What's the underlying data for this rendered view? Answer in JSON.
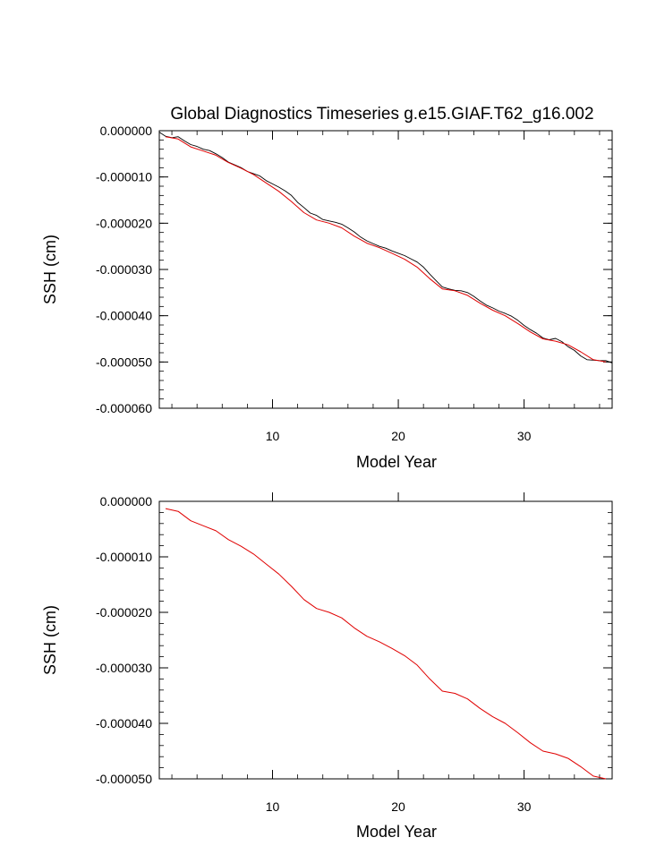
{
  "title": "Global Diagnostics Timeseries g.e15.GIAF.T62_g16.002",
  "colors": {
    "red_series": "#e00000",
    "black_series": "#000000",
    "axis": "#000000",
    "background": "#ffffff"
  },
  "chart_data": [
    {
      "type": "line",
      "title": "Global Diagnostics Timeseries g.e15.GIAF.T62_g16.002",
      "xlabel": "Model Year",
      "ylabel": "SSH (cm)",
      "xlim": [
        1,
        37
      ],
      "ylim": [
        -6e-05,
        0
      ],
      "xticks": [
        10,
        20,
        30
      ],
      "xtick_labels": [
        "10",
        "20",
        "30"
      ],
      "yticks": [
        0,
        -1e-05,
        -2e-05,
        -3e-05,
        -4e-05,
        -5e-05,
        -6e-05
      ],
      "ytick_labels": [
        "0.000000",
        "-0.000010",
        "-0.000020",
        "-0.000030",
        "-0.000040",
        "-0.000050",
        "-0.000060"
      ],
      "grid": false,
      "series": [
        {
          "style": "black-monthly",
          "color": "#000000",
          "x": [
            1.0,
            1.5,
            2.0,
            2.5,
            3.0,
            3.5,
            4.0,
            4.5,
            5.0,
            5.5,
            6.0,
            6.5,
            7.0,
            7.5,
            8.0,
            8.5,
            9.0,
            9.5,
            10.0,
            10.5,
            11.0,
            11.5,
            12.0,
            12.5,
            13.0,
            13.5,
            14.0,
            14.5,
            15.0,
            15.5,
            16.0,
            16.5,
            17.0,
            17.5,
            18.0,
            18.5,
            19.0,
            19.5,
            20.0,
            20.5,
            21.0,
            21.5,
            22.0,
            22.5,
            23.0,
            23.5,
            24.0,
            24.5,
            25.0,
            25.5,
            26.0,
            26.5,
            27.0,
            27.5,
            28.0,
            28.5,
            29.0,
            29.5,
            30.0,
            30.5,
            31.0,
            31.5,
            32.0,
            32.5,
            33.0,
            33.5,
            34.0,
            34.5,
            35.0,
            35.5,
            36.0,
            36.5,
            37.0
          ],
          "y": [
            -3e-07,
            -1.2e-06,
            -1.5e-06,
            -1.3e-06,
            -2.2e-06,
            -3e-06,
            -3.4e-06,
            -4e-06,
            -4.3e-06,
            -5e-06,
            -5.8e-06,
            -6.8e-06,
            -7.4e-06,
            -8e-06,
            -8.8e-06,
            -9.3e-06,
            -9.8e-06,
            -1.08e-05,
            -1.15e-05,
            -1.22e-05,
            -1.3e-05,
            -1.4e-05,
            -1.55e-05,
            -1.66e-05,
            -1.78e-05,
            -1.83e-05,
            -1.92e-05,
            -1.95e-05,
            -1.98e-05,
            -2.02e-05,
            -2.1e-05,
            -2.19e-05,
            -2.3e-05,
            -2.38e-05,
            -2.44e-05,
            -2.5e-05,
            -2.54e-05,
            -2.6e-05,
            -2.65e-05,
            -2.7e-05,
            -2.77e-05,
            -2.84e-05,
            -2.95e-05,
            -3.1e-05,
            -3.24e-05,
            -3.38e-05,
            -3.42e-05,
            -3.45e-05,
            -3.46e-05,
            -3.5e-05,
            -3.58e-05,
            -3.68e-05,
            -3.77e-05,
            -3.83e-05,
            -3.9e-05,
            -3.95e-05,
            -4.01e-05,
            -4.1e-05,
            -4.21e-05,
            -4.3e-05,
            -4.38e-05,
            -4.48e-05,
            -4.52e-05,
            -4.49e-05,
            -4.56e-05,
            -4.67e-05,
            -4.75e-05,
            -4.87e-05,
            -4.95e-05,
            -4.96e-05,
            -4.97e-05,
            -4.97e-05,
            -5.02e-05
          ]
        },
        {
          "style": "red-annual",
          "color": "#e00000",
          "x": [
            1.5,
            2.5,
            3.5,
            4.5,
            5.5,
            6.5,
            7.5,
            8.5,
            9.5,
            10.5,
            11.5,
            12.5,
            13.5,
            14.5,
            15.5,
            16.5,
            17.5,
            18.5,
            19.5,
            20.5,
            21.5,
            22.5,
            23.5,
            24.5,
            25.5,
            26.5,
            27.5,
            28.5,
            29.5,
            30.5,
            31.5,
            32.5,
            33.5,
            34.5,
            35.5,
            36.5
          ],
          "y": [
            -1.3e-06,
            -1.8e-06,
            -3.5e-06,
            -4.4e-06,
            -5.3e-06,
            -6.9e-06,
            -8.1e-06,
            -9.5e-06,
            -1.13e-05,
            -1.31e-05,
            -1.53e-05,
            -1.77e-05,
            -1.93e-05,
            -2e-05,
            -2.1e-05,
            -2.28e-05,
            -2.43e-05,
            -2.53e-05,
            -2.65e-05,
            -2.78e-05,
            -2.95e-05,
            -3.2e-05,
            -3.42e-05,
            -3.46e-05,
            -3.56e-05,
            -3.73e-05,
            -3.88e-05,
            -4e-05,
            -4.17e-05,
            -4.35e-05,
            -4.5e-05,
            -4.55e-05,
            -4.63e-05,
            -4.78e-05,
            -4.95e-05,
            -5e-05
          ]
        }
      ]
    },
    {
      "type": "line",
      "title": "",
      "xlabel": "Model Year",
      "ylabel": "SSH (cm)",
      "xlim": [
        1,
        37
      ],
      "ylim": [
        -5e-05,
        0
      ],
      "xticks": [
        10,
        20,
        30
      ],
      "xtick_labels": [
        "10",
        "20",
        "30"
      ],
      "yticks": [
        0,
        -1e-05,
        -2e-05,
        -3e-05,
        -4e-05,
        -5e-05
      ],
      "ytick_labels": [
        "0.000000",
        "-0.000010",
        "-0.000020",
        "-0.000030",
        "-0.000040",
        "-0.000050"
      ],
      "grid": false,
      "series": [
        {
          "style": "red-annual",
          "color": "#e00000",
          "x": [
            1.5,
            2.5,
            3.5,
            4.5,
            5.5,
            6.5,
            7.5,
            8.5,
            9.5,
            10.5,
            11.5,
            12.5,
            13.5,
            14.5,
            15.5,
            16.5,
            17.5,
            18.5,
            19.5,
            20.5,
            21.5,
            22.5,
            23.5,
            24.5,
            25.5,
            26.5,
            27.5,
            28.5,
            29.5,
            30.5,
            31.5,
            32.5,
            33.5,
            34.5,
            35.5,
            36.5
          ],
          "y": [
            -1.3e-06,
            -1.8e-06,
            -3.5e-06,
            -4.4e-06,
            -5.3e-06,
            -6.9e-06,
            -8.1e-06,
            -9.5e-06,
            -1.13e-05,
            -1.31e-05,
            -1.53e-05,
            -1.77e-05,
            -1.93e-05,
            -2e-05,
            -2.1e-05,
            -2.28e-05,
            -2.43e-05,
            -2.53e-05,
            -2.65e-05,
            -2.78e-05,
            -2.95e-05,
            -3.2e-05,
            -3.42e-05,
            -3.46e-05,
            -3.56e-05,
            -3.73e-05,
            -3.88e-05,
            -4e-05,
            -4.17e-05,
            -4.35e-05,
            -4.5e-05,
            -4.55e-05,
            -4.63e-05,
            -4.78e-05,
            -4.95e-05,
            -5e-05
          ]
        }
      ]
    }
  ]
}
